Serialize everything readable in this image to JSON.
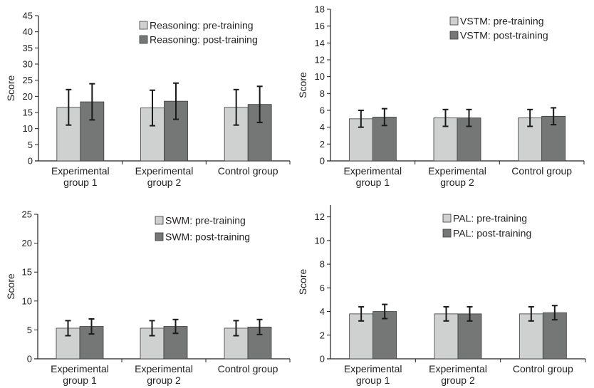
{
  "colors": {
    "pre": "#cfd0d0",
    "post": "#757676",
    "axis": "#231f20",
    "bar_edge": "#3a3a3a"
  },
  "chart_data": [
    {
      "id": "reasoning",
      "type": "bar",
      "ylabel": "Score",
      "ylim": [
        0,
        45
      ],
      "yticks": [
        0,
        5,
        10,
        15,
        20,
        25,
        30,
        35,
        40,
        45
      ],
      "categories": [
        [
          "Experimental",
          "group 1"
        ],
        [
          "Experimental",
          "group 2"
        ],
        [
          "Control group"
        ]
      ],
      "legend_position": "top-right",
      "series": [
        {
          "name": "Reasoning: pre-training",
          "color": "#cfd0d0",
          "values": [
            16.6,
            16.4,
            16.6
          ],
          "errors": [
            5.5,
            5.5,
            5.5
          ]
        },
        {
          "name": "Reasoning: post-training",
          "color": "#757676",
          "values": [
            18.3,
            18.5,
            17.5
          ],
          "errors": [
            5.6,
            5.6,
            5.6
          ]
        }
      ]
    },
    {
      "id": "vstm",
      "type": "bar",
      "ylabel": "Score",
      "ylim": [
        0,
        18
      ],
      "yticks": [
        0,
        2,
        4,
        6,
        8,
        10,
        12,
        14,
        16,
        18
      ],
      "categories": [
        [
          "Experimental",
          "group 1"
        ],
        [
          "Experimental",
          "group 2"
        ],
        [
          "Control group"
        ]
      ],
      "legend_position": "top-right",
      "series": [
        {
          "name": "VSTM: pre-training",
          "color": "#cfd0d0",
          "values": [
            5.0,
            5.1,
            5.1
          ],
          "errors": [
            1.0,
            1.0,
            1.0
          ]
        },
        {
          "name": "VSTM: post-training",
          "color": "#757676",
          "values": [
            5.2,
            5.1,
            5.3
          ],
          "errors": [
            1.0,
            1.0,
            1.0
          ]
        }
      ]
    },
    {
      "id": "swm",
      "type": "bar",
      "ylabel": "Score",
      "ylim": [
        0,
        25
      ],
      "yticks": [
        0,
        5,
        10,
        15,
        20,
        25
      ],
      "categories": [
        [
          "Experimental",
          "group 1"
        ],
        [
          "Experimental",
          "group 2"
        ],
        [
          "Control group"
        ]
      ],
      "legend_position": "top-right",
      "series": [
        {
          "name": "SWM: pre-training",
          "color": "#cfd0d0",
          "values": [
            5.3,
            5.3,
            5.3
          ],
          "errors": [
            1.3,
            1.3,
            1.3
          ]
        },
        {
          "name": "SWM: post-training",
          "color": "#757676",
          "values": [
            5.6,
            5.6,
            5.5
          ],
          "errors": [
            1.3,
            1.2,
            1.3
          ]
        }
      ]
    },
    {
      "id": "pal",
      "type": "bar",
      "ylabel": "Score",
      "ylim": [
        0,
        13
      ],
      "yticks": [
        0,
        2,
        4,
        6,
        8,
        10,
        12
      ],
      "categories": [
        [
          "Experimental",
          "group 1"
        ],
        [
          "Experimental",
          "group 2"
        ],
        [
          "Control group"
        ]
      ],
      "legend_position": "top-right",
      "series": [
        {
          "name": "PAL: pre-training",
          "color": "#cfd0d0",
          "values": [
            3.8,
            3.8,
            3.8
          ],
          "errors": [
            0.6,
            0.6,
            0.6
          ]
        },
        {
          "name": "PAL: post-training",
          "color": "#757676",
          "values": [
            4.0,
            3.8,
            3.9
          ],
          "errors": [
            0.6,
            0.6,
            0.6
          ]
        }
      ]
    }
  ]
}
